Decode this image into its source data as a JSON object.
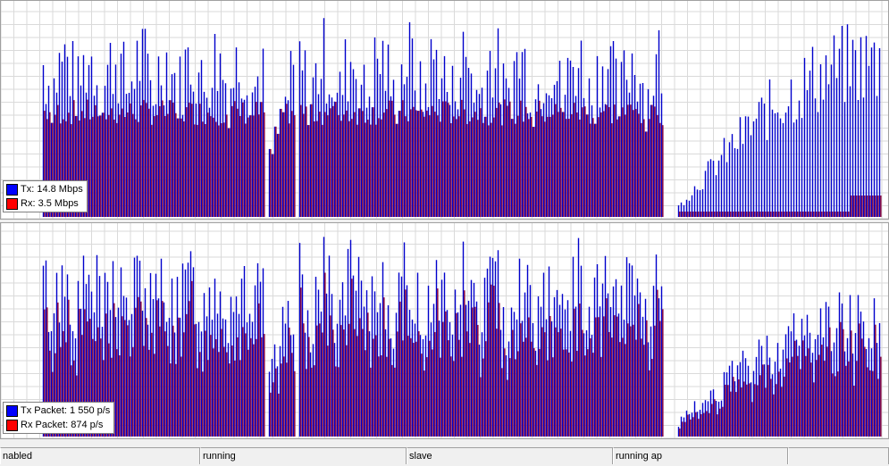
{
  "colors": {
    "tx": "#0000cc",
    "rx": "#cc0000",
    "rx_fill": "#8b1048",
    "grid": "#dadada"
  },
  "traffic_graph": {
    "legend": [
      {
        "color": "#0000ff",
        "label": "Tx:",
        "value": "14.8 Mbps"
      },
      {
        "color": "#ff0000",
        "label": "Rx:",
        "value": "3.5 Mbps"
      }
    ]
  },
  "packet_graph": {
    "legend": [
      {
        "color": "#0000ff",
        "label": "Tx Packet:",
        "value": "1 550 p/s"
      },
      {
        "color": "#ff0000",
        "label": "Rx Packet:",
        "value": "874 p/s"
      }
    ]
  },
  "status_bar": [
    "nabled",
    "running",
    "slave",
    "running ap",
    ""
  ]
}
